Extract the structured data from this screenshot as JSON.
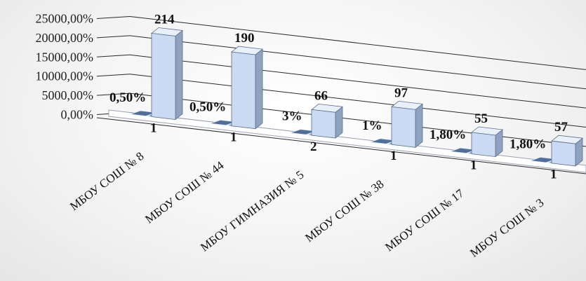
{
  "chart_data": {
    "type": "bar",
    "categories": [
      "МБОУ СОШ № 8",
      "МБОУ СОШ № 44",
      "МБОУ ГИМНАЗИЯ № 5",
      "МБОУ СОШ № 38",
      "МБОУ СОШ № 17",
      "МБОУ СОШ № 3"
    ],
    "y_ticks": [
      "0,00%",
      "5000,00%",
      "10000,00%",
      "15000,00%",
      "20000,00%",
      "25000,00%"
    ],
    "ylim": [
      0,
      25000
    ],
    "grid": true,
    "legend": "none",
    "series": [
      {
        "values": [
          0.5,
          0.5,
          3,
          1,
          1.8,
          1.8
        ],
        "labels": [
          "0,50%",
          "0,50%",
          "3%",
          "1%",
          "1,80%",
          "1,80%"
        ],
        "color": "#4f6e9a"
      },
      {
        "values": [
          1,
          1,
          2,
          1,
          1,
          1
        ],
        "labels": [
          "1",
          "1",
          "2",
          "1",
          "1",
          "1"
        ],
        "color": "#6f8fbf"
      },
      {
        "values": [
          21400,
          19000,
          6600,
          9700,
          5500,
          5700
        ],
        "labels": [
          "214",
          "190",
          "66",
          "97",
          "55",
          "57"
        ],
        "color": "#c9daf2"
      }
    ]
  }
}
